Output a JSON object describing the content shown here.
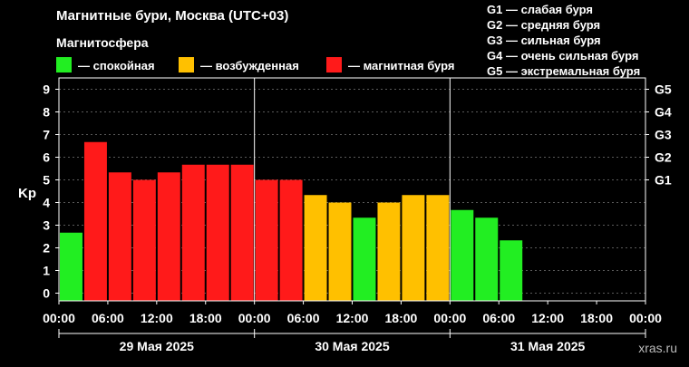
{
  "header": {
    "title": "Магнитные бури, Москва (UTC+03)",
    "subtitle": "Магнитосфера"
  },
  "legend": [
    {
      "label": "— спокойная",
      "color": "#22ee22"
    },
    {
      "label": "— возбужденная",
      "color": "#ffc000"
    },
    {
      "label": "— магнитная буря",
      "color": "#ff1a1a"
    }
  ],
  "g_legend": [
    "G1 — слабая буря",
    "G2 — средняя буря",
    "G3 — сильная буря",
    "G4 — очень сильная буря",
    "G5 — экстремальная буря"
  ],
  "watermark": "xras.ru",
  "chart_data": {
    "type": "bar",
    "ylabel": "Kp",
    "ylim": [
      0,
      9
    ],
    "yticks": [
      "0",
      "1",
      "2",
      "3",
      "4",
      "5",
      "6",
      "7",
      "8",
      "9"
    ],
    "right_ticks": [
      {
        "label": "G1",
        "value": 5
      },
      {
        "label": "G2",
        "value": 6
      },
      {
        "label": "G3",
        "value": 7
      },
      {
        "label": "G4",
        "value": 8
      },
      {
        "label": "G5",
        "value": 9
      }
    ],
    "xticks": [
      "00:00",
      "06:00",
      "12:00",
      "18:00",
      "00:00",
      "06:00",
      "12:00",
      "18:00",
      "00:00",
      "06:00",
      "12:00",
      "18:00",
      "00:00"
    ],
    "days": [
      "29 Мая 2025",
      "30 Мая 2025",
      "31 Мая 2025"
    ],
    "slots_total": 24,
    "values": [
      2.67,
      6.67,
      5.33,
      5.0,
      5.33,
      5.67,
      5.67,
      5.67,
      5.0,
      5.0,
      4.33,
      4.0,
      3.33,
      4.0,
      4.33,
      4.33,
      3.67,
      3.33,
      2.33
    ],
    "colors": {
      "calm": "#22ee22",
      "excited": "#ffc000",
      "storm": "#ff1a1a"
    },
    "grid": true
  }
}
